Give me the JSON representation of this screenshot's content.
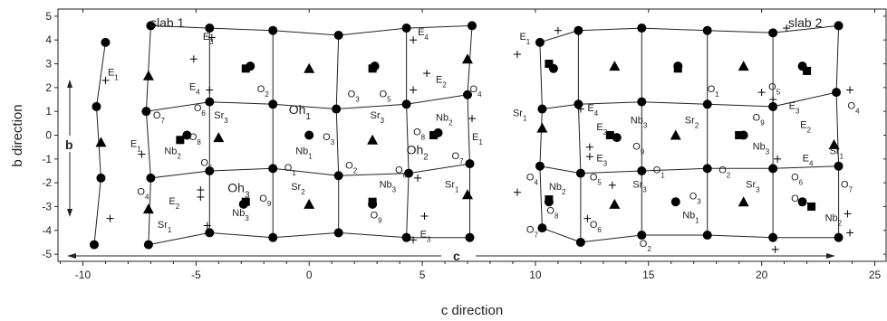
{
  "chart_data": {
    "type": "scatter",
    "xlabel": "c direction",
    "ylabel": "b direction",
    "xlim": [
      -11.1,
      25.5
    ],
    "ylim": [
      -5.3,
      5.3
    ],
    "xticks": [
      -10,
      -5,
      0,
      5,
      10,
      15,
      20,
      25
    ],
    "yticks": [
      5,
      4,
      3,
      2,
      1,
      0,
      -1,
      -2,
      -3,
      -4,
      -5
    ],
    "slab_labels": [
      "slab 1",
      "slab 2"
    ],
    "arrow_labels": {
      "b": "b",
      "c": "c"
    },
    "series": [
      {
        "name": "",
        "marker": "circle",
        "points": [
          [
            -9.0,
            3.9
          ],
          [
            -9.4,
            1.2
          ],
          [
            -9.2,
            -1.8
          ],
          [
            -9.5,
            -4.6
          ],
          [
            -7.0,
            4.6
          ],
          [
            -7.2,
            1.0
          ],
          [
            -7.0,
            -1.8
          ],
          [
            -7.1,
            -4.6
          ],
          [
            -4.4,
            4.5
          ],
          [
            -4.4,
            1.4
          ],
          [
            -4.4,
            -1.5
          ],
          [
            -4.4,
            -4.1
          ],
          [
            -1.6,
            4.4
          ],
          [
            -1.6,
            1.3
          ],
          [
            -1.6,
            -1.4
          ],
          [
            -1.6,
            -4.3
          ],
          [
            1.3,
            4.2
          ],
          [
            1.2,
            1.1
          ],
          [
            1.3,
            -1.7
          ],
          [
            1.3,
            -4.1
          ],
          [
            4.3,
            4.5
          ],
          [
            4.3,
            1.3
          ],
          [
            4.4,
            -1.6
          ],
          [
            4.3,
            -4.3
          ],
          [
            7.2,
            4.6
          ],
          [
            7.0,
            1.7
          ],
          [
            7.1,
            -1.2
          ],
          [
            7.1,
            -4.3
          ],
          [
            10.2,
            3.9
          ],
          [
            10.3,
            1.1
          ],
          [
            10.2,
            -1.3
          ],
          [
            10.3,
            -3.9
          ],
          [
            11.9,
            4.4
          ],
          [
            11.9,
            1.3
          ],
          [
            12.0,
            -1.6
          ],
          [
            12.0,
            -4.5
          ],
          [
            14.7,
            4.5
          ],
          [
            14.7,
            1.4
          ],
          [
            14.7,
            -1.5
          ],
          [
            14.7,
            -4.2
          ],
          [
            17.6,
            4.4
          ],
          [
            17.6,
            1.3
          ],
          [
            17.6,
            -1.4
          ],
          [
            17.6,
            -4.2
          ],
          [
            20.5,
            4.3
          ],
          [
            20.5,
            1.2
          ],
          [
            20.5,
            -1.4
          ],
          [
            20.5,
            -4.3
          ],
          [
            23.4,
            4.6
          ],
          [
            23.3,
            1.8
          ],
          [
            23.4,
            -1.3
          ],
          [
            23.4,
            -4.3
          ],
          [
            26.1,
            4.3
          ],
          [
            26.1,
            1.4
          ],
          [
            26.1,
            -1.7
          ],
          [
            26.1,
            -4.6
          ],
          [
            -2.6,
            2.9
          ],
          [
            2.9,
            2.9
          ],
          [
            -5.4,
            0.0
          ],
          [
            0.0,
            0.0
          ],
          [
            5.7,
            0.1
          ],
          [
            -2.9,
            -2.9
          ],
          [
            2.8,
            -2.9
          ],
          [
            10.8,
            2.8
          ],
          [
            16.3,
            2.9
          ],
          [
            13.6,
            -0.1
          ],
          [
            19.2,
            0.0
          ],
          [
            10.6,
            -2.8
          ],
          [
            16.2,
            -2.8
          ],
          [
            21.8,
            -2.8
          ],
          [
            21.8,
            2.9
          ]
        ]
      },
      {
        "name": "",
        "marker": "square",
        "points": [
          [
            -2.8,
            2.8
          ],
          [
            2.8,
            2.8
          ],
          [
            -5.7,
            -0.2
          ],
          [
            5.5,
            0.0
          ],
          [
            -2.8,
            -2.8
          ],
          [
            2.8,
            -2.8
          ],
          [
            10.6,
            3.0
          ],
          [
            16.3,
            2.8
          ],
          [
            13.3,
            0.0
          ],
          [
            19.0,
            0.0
          ],
          [
            10.6,
            -2.7
          ],
          [
            22.2,
            -3.0
          ],
          [
            22.0,
            2.7
          ]
        ]
      },
      {
        "name": "",
        "marker": "triangle",
        "points": [
          [
            -9.2,
            -0.3
          ],
          [
            -7.1,
            2.5
          ],
          [
            -7.1,
            -3.1
          ],
          [
            0.0,
            2.8
          ],
          [
            -4.0,
            -0.1
          ],
          [
            2.8,
            -0.2
          ],
          [
            0.0,
            -2.9
          ],
          [
            7.0,
            3.2
          ],
          [
            7.0,
            -2.5
          ],
          [
            10.3,
            0.3
          ],
          [
            13.5,
            2.9
          ],
          [
            16.2,
            0.0
          ],
          [
            19.2,
            2.9
          ],
          [
            13.5,
            -2.9
          ],
          [
            19.2,
            -2.8
          ],
          [
            23.2,
            -0.4
          ],
          [
            25.8,
            2.6
          ],
          [
            25.8,
            -3.2
          ]
        ]
      },
      {
        "name": "",
        "marker": "plus",
        "points": [
          [
            -9.0,
            2.3
          ],
          [
            -8.8,
            -3.5
          ],
          [
            -7.4,
            -0.8
          ],
          [
            -5.1,
            3.2
          ],
          [
            -4.8,
            -2.3
          ],
          [
            -4.8,
            -2.6
          ],
          [
            -4.4,
            1.9
          ],
          [
            -4.5,
            -3.8
          ],
          [
            -4.3,
            4.1
          ],
          [
            4.6,
            1.9
          ],
          [
            5.2,
            2.6
          ],
          [
            4.6,
            4.0
          ],
          [
            4.8,
            -1.8
          ],
          [
            5.1,
            -3.4
          ],
          [
            4.6,
            -4.4
          ],
          [
            7.2,
            0.7
          ],
          [
            9.2,
            3.4
          ],
          [
            9.2,
            -2.4
          ],
          [
            11.0,
            4.4
          ],
          [
            12.4,
            -0.5
          ],
          [
            12.4,
            -0.9
          ],
          [
            12.0,
            1.1
          ],
          [
            12.3,
            -3.5
          ],
          [
            13.4,
            -2.1
          ],
          [
            20.0,
            1.8
          ],
          [
            20.7,
            -1.0
          ],
          [
            20.5,
            1.5
          ],
          [
            21.1,
            4.5
          ],
          [
            23.9,
            1.9
          ],
          [
            23.8,
            -3.3
          ],
          [
            23.9,
            -4.1
          ],
          [
            25.8,
            -0.4
          ],
          [
            20.6,
            -4.8
          ]
        ]
      }
    ],
    "labels": [
      {
        "text": "E",
        "sub": "1",
        "x": -8.9,
        "y": 2.5
      },
      {
        "text": "E",
        "sub": "1",
        "x": -7.9,
        "y": -0.5
      },
      {
        "text": "O",
        "sub": "7",
        "x": -6.9,
        "y": 0.7
      },
      {
        "text": "O",
        "sub": "4",
        "x": -7.6,
        "y": -2.5
      },
      {
        "text": "Sr",
        "sub": "1",
        "x": -6.7,
        "y": -3.9
      },
      {
        "text": "E",
        "sub": "3",
        "x": -4.7,
        "y": 4.0
      },
      {
        "text": "E",
        "sub": "4",
        "x": -5.3,
        "y": 1.9
      },
      {
        "text": "O",
        "sub": "6",
        "x": -5.1,
        "y": 1.0
      },
      {
        "text": "O",
        "sub": "8",
        "x": -5.3,
        "y": -0.2
      },
      {
        "text": "Nb",
        "sub": "2",
        "x": -6.4,
        "y": -0.8
      },
      {
        "text": "O",
        "sub": "5",
        "x": -4.8,
        "y": -1.3
      },
      {
        "text": "E",
        "sub": "2",
        "x": -6.2,
        "y": -2.9
      },
      {
        "text": "Sr",
        "sub": "3",
        "x": -4.2,
        "y": 0.7
      },
      {
        "text": "O",
        "sub": "2",
        "x": -2.3,
        "y": 1.8
      },
      {
        "text": "Oh",
        "sub": "1",
        "x": -0.9,
        "y": 0.9,
        "big": true
      },
      {
        "text": "Sr",
        "sub": "3",
        "x": 2.7,
        "y": 0.7
      },
      {
        "text": "O",
        "sub": "3",
        "x": 0.6,
        "y": -0.2
      },
      {
        "text": "Nb",
        "sub": "1",
        "x": -0.6,
        "y": -0.8
      },
      {
        "text": "O",
        "sub": "1",
        "x": -1.1,
        "y": -1.5
      },
      {
        "text": "O",
        "sub": "2",
        "x": 1.6,
        "y": -1.4
      },
      {
        "text": "O",
        "sub": "6",
        "x": 3.8,
        "y": -1.6
      },
      {
        "text": "O",
        "sub": "3",
        "x": 1.7,
        "y": 1.6
      },
      {
        "text": "O",
        "sub": "5",
        "x": 3.1,
        "y": 1.6
      },
      {
        "text": "O",
        "sub": "8",
        "x": 4.6,
        "y": 0.0
      },
      {
        "text": "Nb",
        "sub": "2",
        "x": 5.6,
        "y": 0.6
      },
      {
        "text": "Oh",
        "sub": "2",
        "x": 4.3,
        "y": -0.8,
        "big": true
      },
      {
        "text": "E",
        "sub": "1",
        "x": 7.2,
        "y": -0.2
      },
      {
        "text": "O",
        "sub": "7",
        "x": 6.3,
        "y": -1.0
      },
      {
        "text": "Sr",
        "sub": "1",
        "x": 6.0,
        "y": -2.2
      },
      {
        "text": "O",
        "sub": "4",
        "x": 7.1,
        "y": 1.8
      },
      {
        "text": "E",
        "sub": "4",
        "x": 4.8,
        "y": 4.2
      },
      {
        "text": "E",
        "sub": "2",
        "x": 5.6,
        "y": 2.2
      },
      {
        "text": "Oh",
        "sub": "3",
        "x": -3.6,
        "y": -2.4,
        "big": true
      },
      {
        "text": "O",
        "sub": "9",
        "x": -2.2,
        "y": -2.8
      },
      {
        "text": "Nb",
        "sub": "3",
        "x": -3.4,
        "y": -3.4
      },
      {
        "text": "Sr",
        "sub": "2",
        "x": -0.8,
        "y": -2.3
      },
      {
        "text": "Nb",
        "sub": "3",
        "x": 3.1,
        "y": -2.2
      },
      {
        "text": "O",
        "sub": "9",
        "x": 2.7,
        "y": -3.5
      },
      {
        "text": "E",
        "sub": "3",
        "x": 4.9,
        "y": -4.3
      },
      {
        "text": "E",
        "sub": "1",
        "x": 9.3,
        "y": 4.0
      },
      {
        "text": "Sr",
        "sub": "1",
        "x": 9.0,
        "y": 0.8
      },
      {
        "text": "O",
        "sub": "4",
        "x": 9.6,
        "y": -1.9
      },
      {
        "text": "Nb",
        "sub": "2",
        "x": 10.6,
        "y": -2.3
      },
      {
        "text": "O",
        "sub": "8",
        "x": 10.5,
        "y": -3.3
      },
      {
        "text": "O",
        "sub": "5",
        "x": 12.4,
        "y": -1.9
      },
      {
        "text": "O",
        "sub": "6",
        "x": 12.4,
        "y": -3.9
      },
      {
        "text": "O",
        "sub": "7",
        "x": 9.6,
        "y": -4.1
      },
      {
        "text": "E",
        "sub": "4",
        "x": 12.3,
        "y": 1.0
      },
      {
        "text": "E",
        "sub": "2",
        "x": 12.7,
        "y": 0.2
      },
      {
        "text": "E",
        "sub": "3",
        "x": 12.7,
        "y": -1.1
      },
      {
        "text": "Nb",
        "sub": "3",
        "x": 14.2,
        "y": 0.5
      },
      {
        "text": "O",
        "sub": "9",
        "x": 14.3,
        "y": -0.6
      },
      {
        "text": "Sr",
        "sub": "3",
        "x": 14.3,
        "y": -2.2
      },
      {
        "text": "O",
        "sub": "1",
        "x": 15.2,
        "y": -1.6
      },
      {
        "text": "O",
        "sub": "2",
        "x": 14.6,
        "y": -4.7
      },
      {
        "text": "Sr",
        "sub": "2",
        "x": 16.6,
        "y": 0.5
      },
      {
        "text": "O",
        "sub": "3",
        "x": 16.8,
        "y": -2.7
      },
      {
        "text": "Nb",
        "sub": "1",
        "x": 16.5,
        "y": -3.5
      },
      {
        "text": "O",
        "sub": "1",
        "x": 17.6,
        "y": 1.8
      },
      {
        "text": "O",
        "sub": "2",
        "x": 18.1,
        "y": -1.6
      },
      {
        "text": "O",
        "sub": "9",
        "x": 19.6,
        "y": 0.6
      },
      {
        "text": "Nb",
        "sub": "3",
        "x": 19.6,
        "y": -0.6
      },
      {
        "text": "Sr",
        "sub": "3",
        "x": 19.3,
        "y": -2.2
      },
      {
        "text": "O",
        "sub": "5",
        "x": 20.3,
        "y": 1.9
      },
      {
        "text": "E",
        "sub": "3",
        "x": 21.2,
        "y": 1.1
      },
      {
        "text": "E",
        "sub": "2",
        "x": 21.7,
        "y": 0.3
      },
      {
        "text": "E",
        "sub": "4",
        "x": 21.8,
        "y": -1.1
      },
      {
        "text": "O",
        "sub": "6",
        "x": 21.3,
        "y": -1.9
      },
      {
        "text": "O",
        "sub": "7",
        "x": 23.5,
        "y": -2.2
      },
      {
        "text": "Sr",
        "sub": "1",
        "x": 23.0,
        "y": -0.8
      },
      {
        "text": "O",
        "sub": "4",
        "x": 23.8,
        "y": 1.1
      },
      {
        "text": "O",
        "sub": "8",
        "x": 21.3,
        "y": -2.8
      },
      {
        "text": "Nb",
        "sub": "2",
        "x": 22.8,
        "y": -3.6
      }
    ]
  }
}
